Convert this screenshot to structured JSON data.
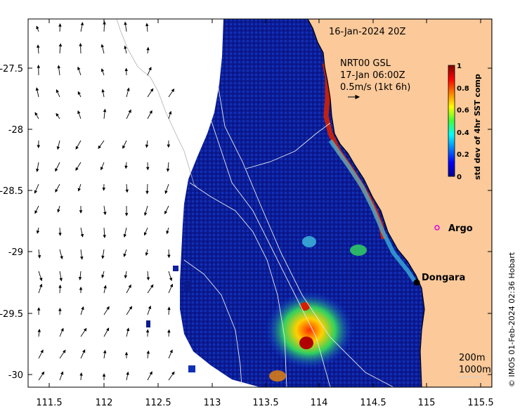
{
  "map": {
    "date_label": "16-Jan-2024 20Z",
    "current_source": "NRT00 GSL",
    "current_time": "17-Jan 06:00Z",
    "vector_scale_label": "0.5m/s (1kt 6h)",
    "isobath_labels": [
      "200m",
      "1000m"
    ],
    "credit": "© IMOS 01-Feb-2024 02:36 Hobart",
    "x_ticks": [
      "111.5",
      "112",
      "112.5",
      "113",
      "113.5",
      "114",
      "114.5",
      "115",
      "115.5"
    ],
    "y_ticks": [
      "-27.5",
      "-28",
      "-28.5",
      "-29",
      "-29.5",
      "-30"
    ],
    "places": [
      {
        "name": "Argo",
        "marker": "magenta-circle"
      },
      {
        "name": "Dongara",
        "marker": "black-dot"
      }
    ],
    "colorbar": {
      "label": "std dev of 4hr SST comp",
      "ticks": [
        "1",
        "0.8",
        "0.6",
        "0.4",
        "0.2",
        "0"
      ],
      "colormap": "jet"
    },
    "colors": {
      "land": "#fbc99a",
      "ocean_low": "#0a1a8c",
      "no_data": "#ffffff"
    }
  }
}
